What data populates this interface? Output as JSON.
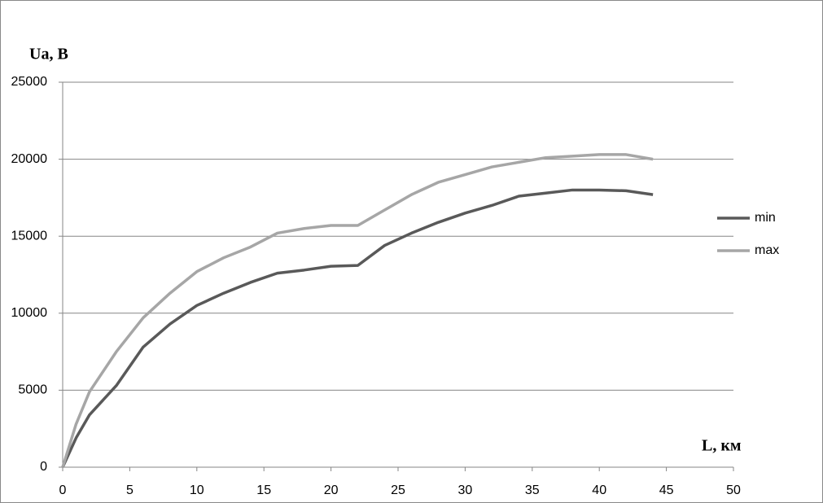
{
  "chart_data": {
    "type": "line",
    "y_label": "Ua, В",
    "x_label": "L, км",
    "x": [
      0,
      1,
      2,
      4,
      6,
      8,
      10,
      12,
      14,
      16,
      18,
      20,
      22,
      24,
      26,
      28,
      30,
      32,
      34,
      36,
      38,
      40,
      42,
      44
    ],
    "series": [
      {
        "name": "min",
        "color": "#595959",
        "values": [
          0,
          1900,
          3400,
          5300,
          7800,
          9300,
          10500,
          11300,
          12000,
          12600,
          12800,
          13050,
          13100,
          14400,
          15200,
          15900,
          16500,
          17000,
          17600,
          17800,
          18000,
          18000,
          17950,
          17700
        ]
      },
      {
        "name": "max",
        "color": "#a6a6a6",
        "values": [
          0,
          2800,
          4900,
          7500,
          9700,
          11300,
          12700,
          13600,
          14300,
          15200,
          15500,
          15700,
          15700,
          16700,
          17700,
          18500,
          19000,
          19500,
          19800,
          20100,
          20200,
          20300,
          20300,
          20000
        ]
      }
    ],
    "xlim": [
      0,
      50
    ],
    "xticks": [
      0,
      5,
      10,
      15,
      20,
      25,
      30,
      35,
      40,
      45,
      50
    ],
    "ylim": [
      0,
      25000
    ],
    "yticks": [
      0,
      5000,
      10000,
      15000,
      20000,
      25000
    ],
    "grid": true,
    "legend": "right"
  }
}
